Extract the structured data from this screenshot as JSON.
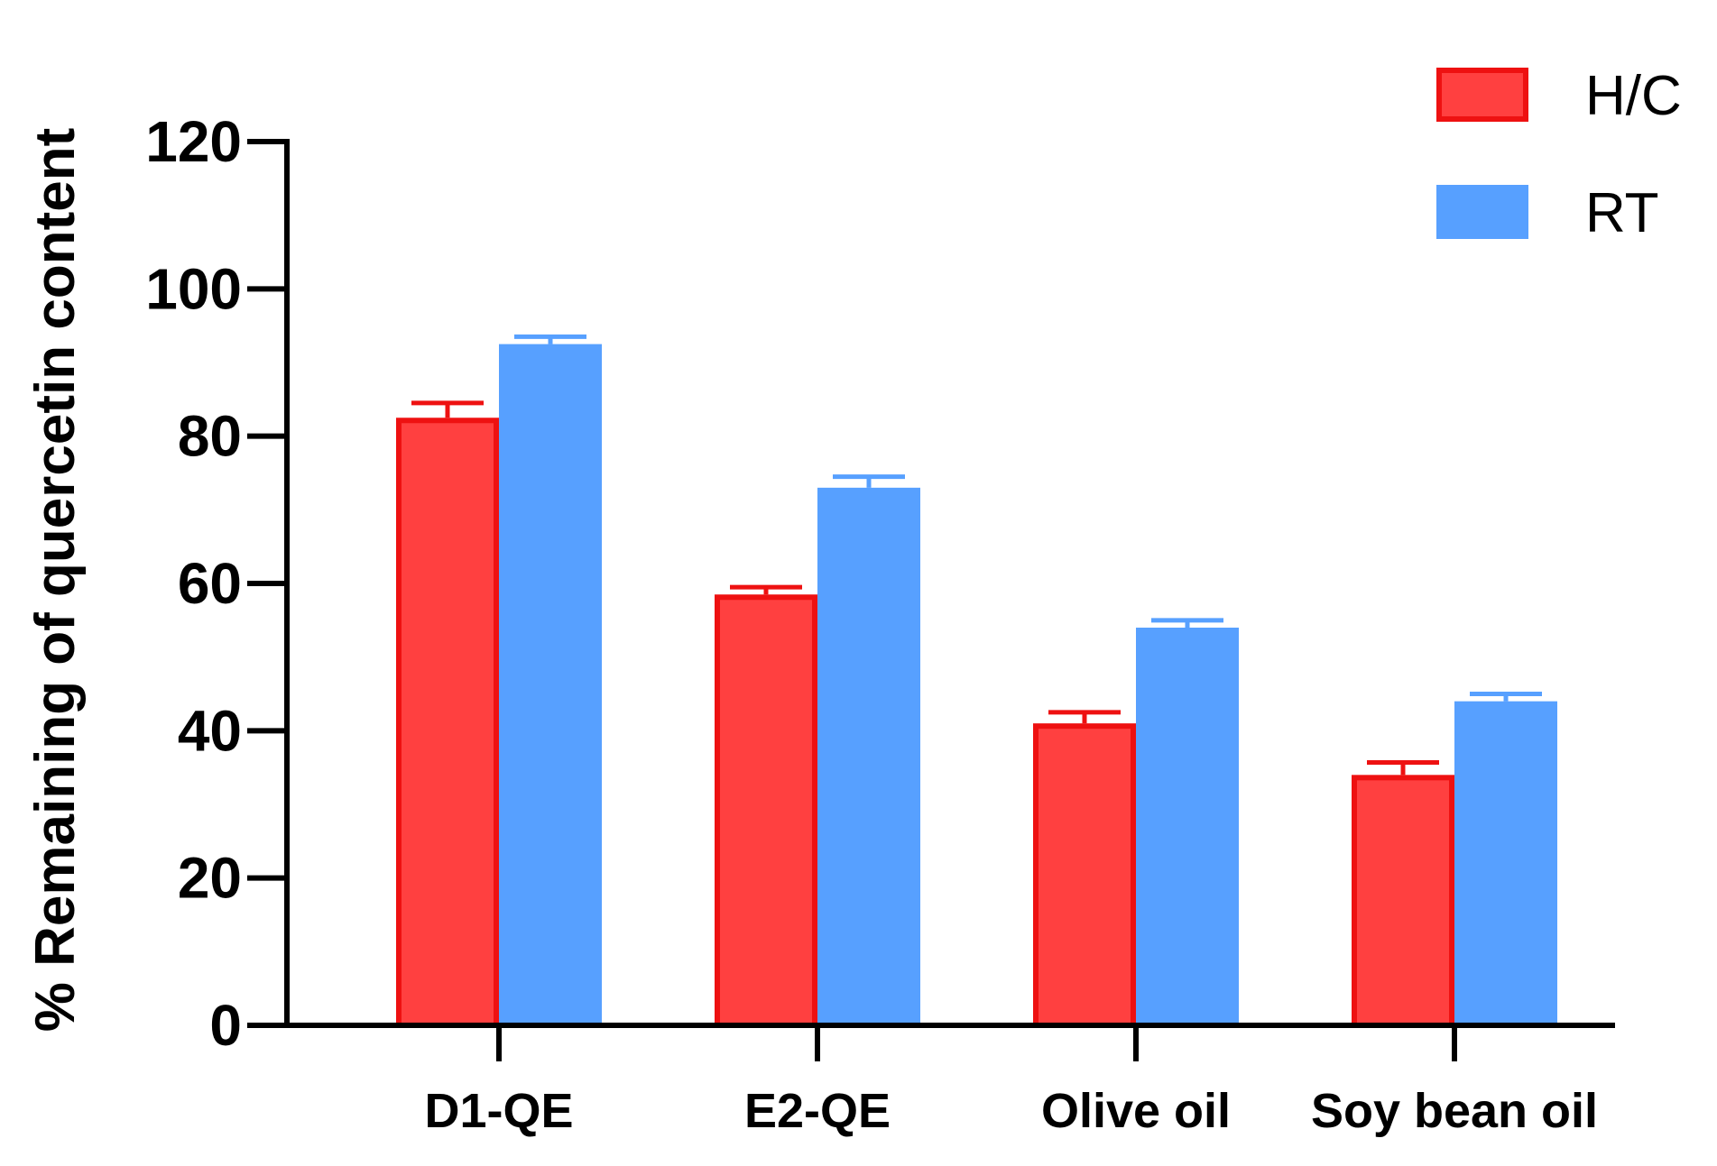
{
  "chart_data": {
    "type": "bar",
    "title": "",
    "xlabel": "",
    "ylabel": "% Remaining of quercetin content",
    "categories": [
      "D1-QE",
      "E2-QE",
      "Olive oil",
      "Soy bean oil"
    ],
    "series": [
      {
        "name": "H/C",
        "values": [
          82.5,
          58.5,
          41,
          34
        ],
        "errors": [
          2,
          1,
          1.5,
          1.7
        ],
        "color": "#ff4040",
        "edge": "#ee1111"
      },
      {
        "name": "RT",
        "values": [
          92.5,
          73,
          54,
          44
        ],
        "errors": [
          1,
          1.5,
          1,
          1
        ],
        "color": "#57a0ff",
        "edge": "#57a0ff"
      }
    ],
    "ylim": [
      0,
      120
    ],
    "yticks": [
      0,
      20,
      40,
      60,
      80,
      100,
      120
    ],
    "grid": false,
    "legend": "top-right"
  }
}
